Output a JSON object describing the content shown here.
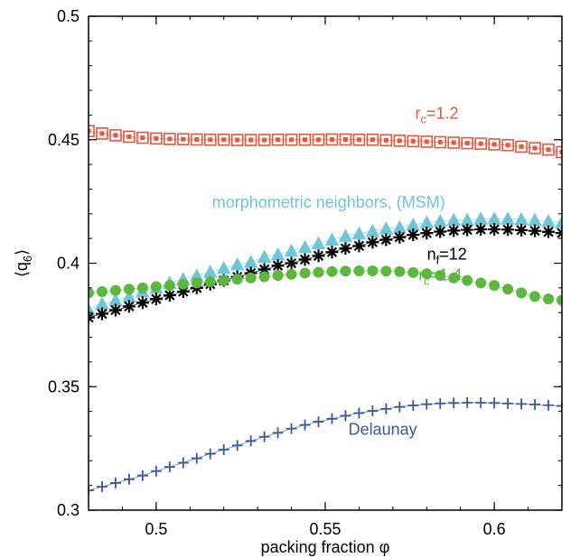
{
  "chart_data": {
    "type": "scatter",
    "title": "",
    "xlabel": "packing fraction φ",
    "ylabel": "⟨q6⟩",
    "ylabel_parts": {
      "open": "⟨",
      "q": "q",
      "sub": "6",
      "close": "⟩"
    },
    "xlim": [
      0.48,
      0.62
    ],
    "ylim": [
      0.3,
      0.5
    ],
    "xticks": [
      0.5,
      0.55,
      0.6
    ],
    "xtick_labels": [
      "0.5",
      "0.55",
      "0.6"
    ],
    "yticks": [
      0.3,
      0.35,
      0.4,
      0.45,
      0.5
    ],
    "ytick_labels": [
      "0.3",
      "0.35",
      "0.4",
      "0.45",
      "0.5"
    ],
    "grid": false,
    "legend": "none",
    "series": [
      {
        "name": "rc=1.2",
        "label_parts": {
          "main": "r",
          "sub": "c",
          "rest": "=1.2"
        },
        "color": "#e8553a",
        "marker": "square",
        "x": [
          0.48,
          0.484,
          0.488,
          0.492,
          0.496,
          0.5,
          0.504,
          0.508,
          0.512,
          0.516,
          0.52,
          0.524,
          0.528,
          0.532,
          0.536,
          0.54,
          0.544,
          0.548,
          0.552,
          0.556,
          0.56,
          0.564,
          0.568,
          0.572,
          0.576,
          0.58,
          0.584,
          0.588,
          0.592,
          0.596,
          0.6,
          0.604,
          0.608,
          0.612,
          0.616,
          0.62
        ],
        "y": [
          0.4535,
          0.4525,
          0.4518,
          0.4512,
          0.4508,
          0.4505,
          0.4503,
          0.4502,
          0.4501,
          0.45,
          0.45,
          0.4499,
          0.4499,
          0.4499,
          0.45,
          0.45,
          0.45,
          0.45,
          0.4501,
          0.4501,
          0.45,
          0.45,
          0.4498,
          0.4496,
          0.4494,
          0.4492,
          0.449,
          0.4488,
          0.4486,
          0.4484,
          0.4481,
          0.4478,
          0.4472,
          0.4466,
          0.446,
          0.445
        ]
      },
      {
        "name": "morphometric neighbors, (MSM)",
        "color": "#6fc6d9",
        "marker": "triangle",
        "x": [
          0.48,
          0.484,
          0.488,
          0.492,
          0.496,
          0.5,
          0.504,
          0.508,
          0.512,
          0.516,
          0.52,
          0.524,
          0.528,
          0.532,
          0.536,
          0.54,
          0.544,
          0.548,
          0.552,
          0.556,
          0.56,
          0.564,
          0.568,
          0.572,
          0.576,
          0.58,
          0.584,
          0.588,
          0.592,
          0.596,
          0.6,
          0.604,
          0.608,
          0.612,
          0.616,
          0.62
        ],
        "y": [
          0.381,
          0.3835,
          0.385,
          0.3865,
          0.3885,
          0.39,
          0.392,
          0.3935,
          0.395,
          0.3965,
          0.398,
          0.3995,
          0.4005,
          0.4025,
          0.4035,
          0.405,
          0.4065,
          0.408,
          0.4095,
          0.411,
          0.412,
          0.413,
          0.414,
          0.4145,
          0.4155,
          0.4165,
          0.417,
          0.4175,
          0.4175,
          0.418,
          0.418,
          0.418,
          0.4178,
          0.4175,
          0.417,
          0.4165
        ]
      },
      {
        "name": "nf=12",
        "label_parts": {
          "main": "n",
          "sub": "f",
          "rest": "=12"
        },
        "color": "#000000",
        "marker": "asterisk",
        "x": [
          0.48,
          0.484,
          0.488,
          0.492,
          0.496,
          0.5,
          0.504,
          0.508,
          0.512,
          0.516,
          0.52,
          0.524,
          0.528,
          0.532,
          0.536,
          0.54,
          0.544,
          0.548,
          0.552,
          0.556,
          0.56,
          0.564,
          0.568,
          0.572,
          0.576,
          0.58,
          0.584,
          0.588,
          0.592,
          0.596,
          0.6,
          0.604,
          0.608,
          0.612,
          0.616,
          0.62
        ],
        "y": [
          0.378,
          0.3795,
          0.381,
          0.3825,
          0.384,
          0.3855,
          0.387,
          0.3885,
          0.39,
          0.3915,
          0.393,
          0.3945,
          0.396,
          0.3975,
          0.399,
          0.4,
          0.4015,
          0.403,
          0.4045,
          0.406,
          0.407,
          0.4085,
          0.4095,
          0.4105,
          0.4115,
          0.4122,
          0.4128,
          0.4132,
          0.4135,
          0.4137,
          0.4137,
          0.4136,
          0.4134,
          0.4131,
          0.4127,
          0.4122
        ]
      },
      {
        "name": "rc=1.4",
        "label_parts": {
          "main": "r",
          "sub": "c",
          "rest": "=1.4"
        },
        "color": "#5cb83c",
        "marker": "circle",
        "x": [
          0.48,
          0.484,
          0.488,
          0.492,
          0.496,
          0.5,
          0.504,
          0.508,
          0.512,
          0.516,
          0.52,
          0.524,
          0.528,
          0.532,
          0.536,
          0.54,
          0.544,
          0.548,
          0.552,
          0.556,
          0.56,
          0.564,
          0.568,
          0.572,
          0.576,
          0.58,
          0.584,
          0.588,
          0.592,
          0.596,
          0.6,
          0.604,
          0.608,
          0.612,
          0.616,
          0.62
        ],
        "y": [
          0.388,
          0.3885,
          0.389,
          0.3895,
          0.39,
          0.3905,
          0.391,
          0.3915,
          0.392,
          0.3925,
          0.393,
          0.3935,
          0.394,
          0.3945,
          0.395,
          0.3955,
          0.396,
          0.3963,
          0.3966,
          0.3968,
          0.3969,
          0.3969,
          0.3968,
          0.3966,
          0.3962,
          0.3957,
          0.395,
          0.394,
          0.393,
          0.392,
          0.391,
          0.3895,
          0.388,
          0.3865,
          0.3855,
          0.385
        ]
      },
      {
        "name": "Delaunay",
        "color": "#3b57a3",
        "marker": "plus",
        "x": [
          0.48,
          0.484,
          0.488,
          0.492,
          0.496,
          0.5,
          0.504,
          0.508,
          0.512,
          0.516,
          0.52,
          0.524,
          0.528,
          0.532,
          0.536,
          0.54,
          0.544,
          0.548,
          0.552,
          0.556,
          0.56,
          0.564,
          0.568,
          0.572,
          0.576,
          0.58,
          0.584,
          0.588,
          0.592,
          0.596,
          0.6,
          0.604,
          0.608,
          0.612,
          0.616,
          0.62
        ],
        "y": [
          0.308,
          0.3095,
          0.311,
          0.3125,
          0.314,
          0.3158,
          0.3175,
          0.3192,
          0.321,
          0.3228,
          0.3245,
          0.3262,
          0.328,
          0.3297,
          0.3313,
          0.333,
          0.3345,
          0.3358,
          0.337,
          0.3382,
          0.3393,
          0.3402,
          0.341,
          0.3418,
          0.3424,
          0.3429,
          0.3432,
          0.3434,
          0.3435,
          0.3435,
          0.3434,
          0.3432,
          0.343,
          0.3428,
          0.3425,
          0.3422
        ]
      }
    ],
    "annotations": [
      {
        "series": "rc=1.2",
        "x": 0.583,
        "y": 0.4585
      },
      {
        "series": "morphometric neighbors, (MSM)",
        "x": 0.551,
        "y": 0.4225
      },
      {
        "series": "nf=12",
        "x": 0.586,
        "y": 0.4015
      },
      {
        "series": "rc=1.4",
        "x": 0.584,
        "y": 0.393
      },
      {
        "series": "Delaunay",
        "x": 0.567,
        "y": 0.3305
      }
    ]
  }
}
